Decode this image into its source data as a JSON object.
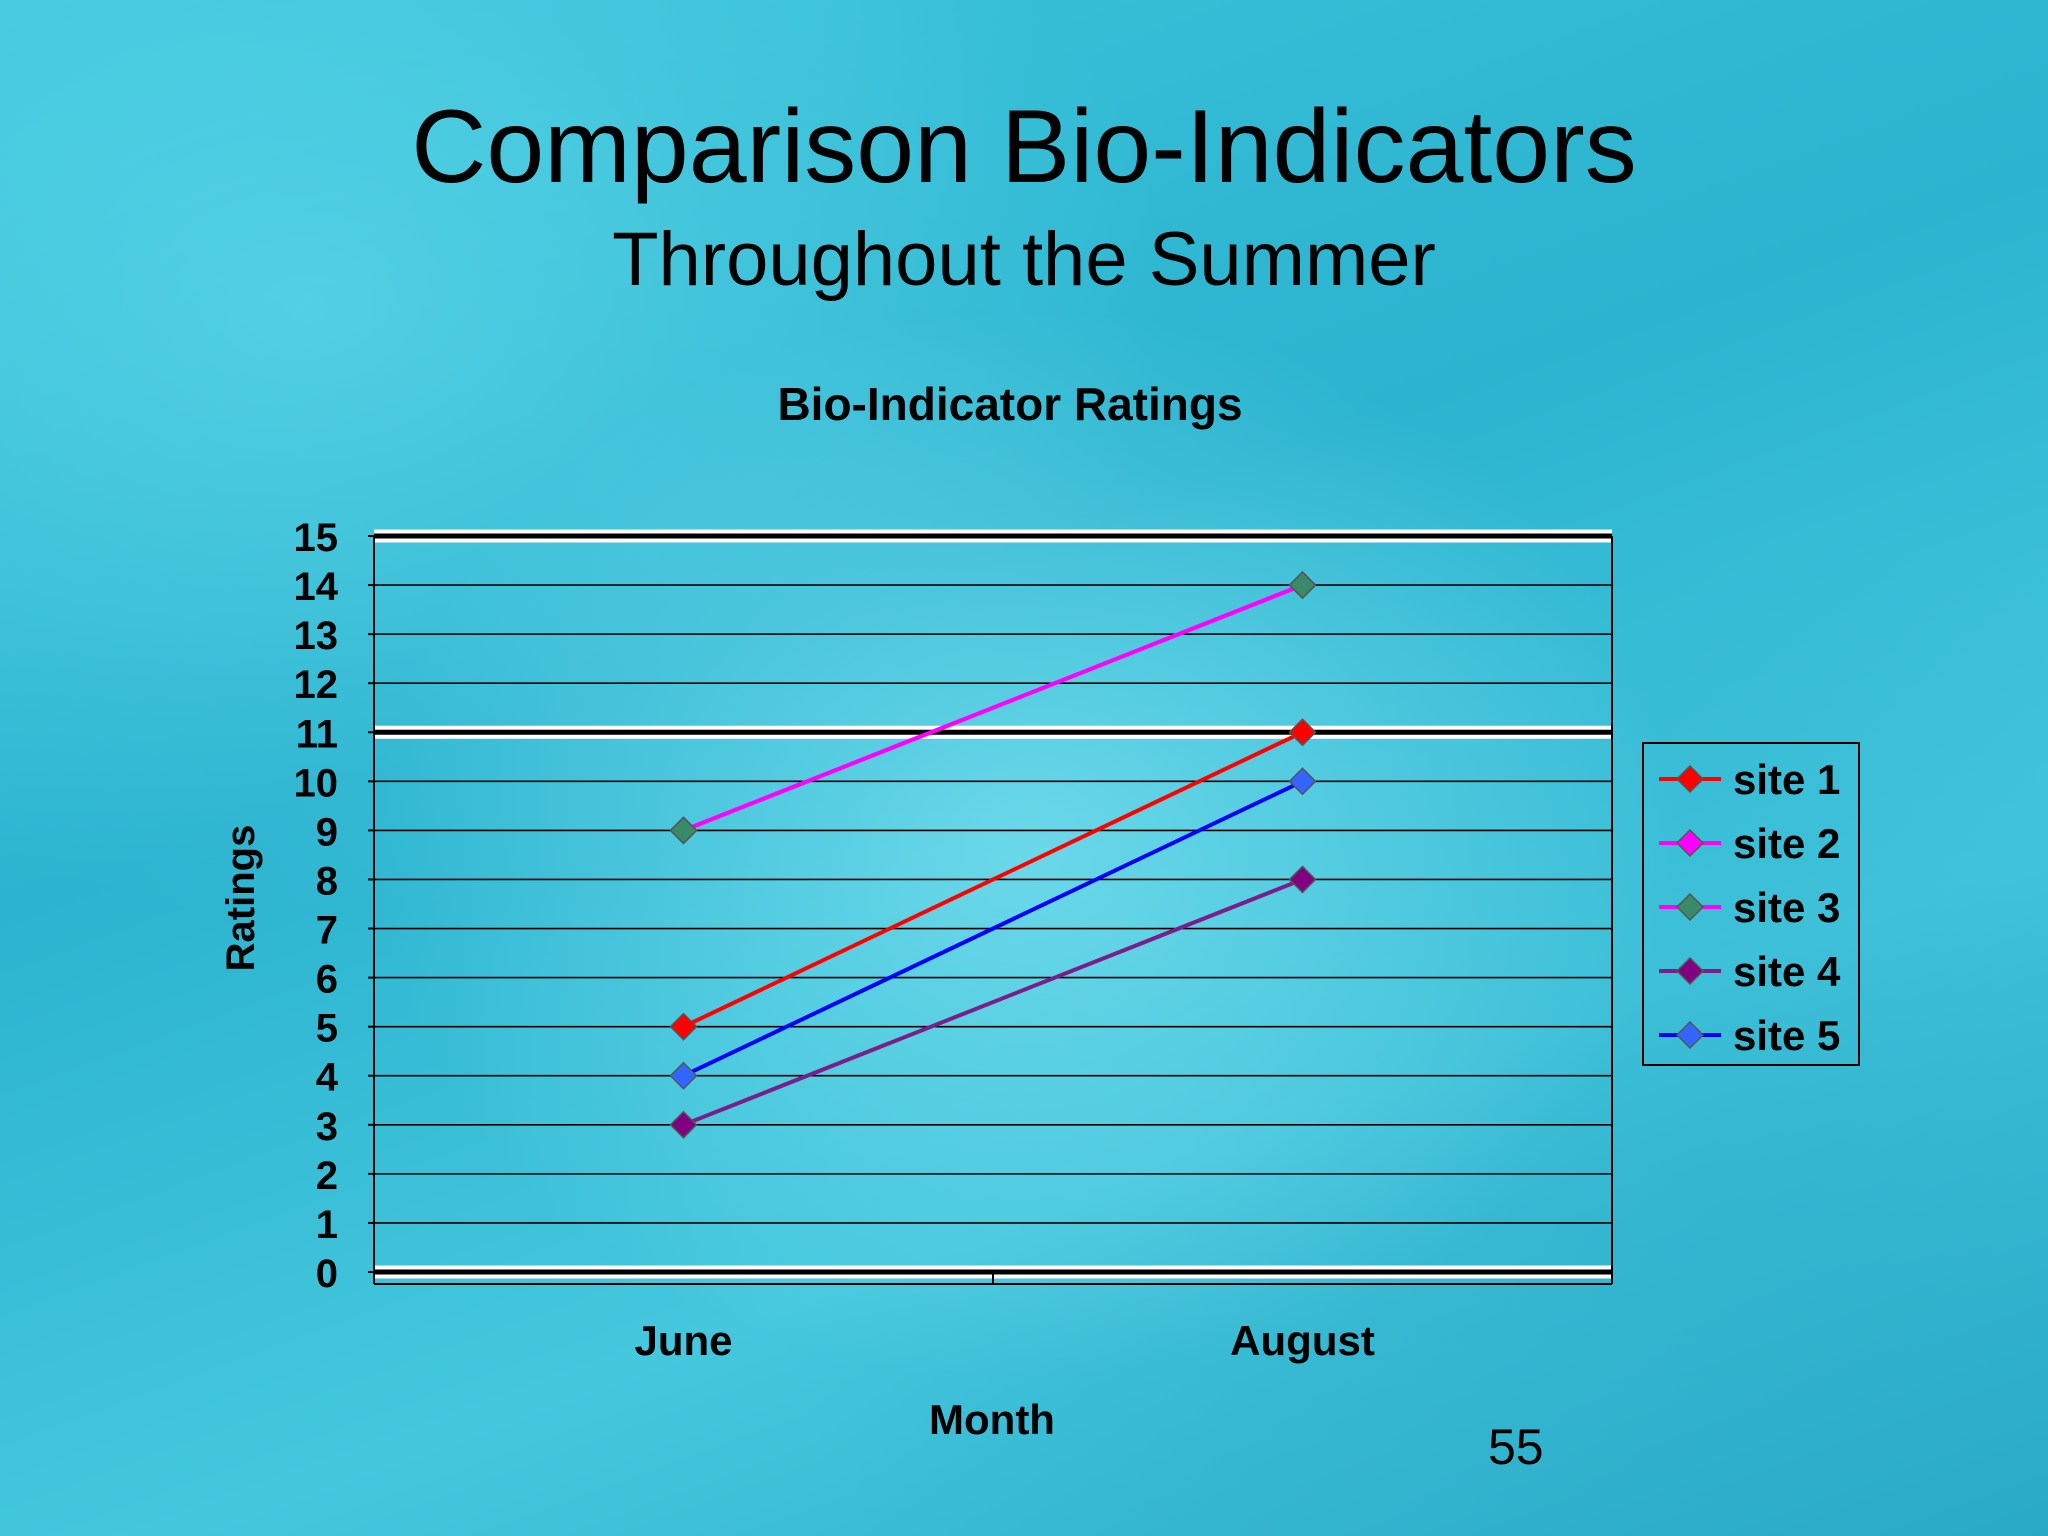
{
  "slide": {
    "title": "Comparison Bio-Indicators",
    "subtitle": "Throughout the Summer",
    "page_number": "55"
  },
  "chart_data": {
    "type": "line",
    "title": "Bio-Indicator Ratings",
    "xlabel": "Month",
    "ylabel": "Ratings",
    "categories": [
      "June",
      "August"
    ],
    "ylim": [
      0,
      15
    ],
    "yticks": [
      "0",
      "1",
      "2",
      "3",
      "4",
      "5",
      "6",
      "7",
      "8",
      "9",
      "10",
      "11",
      "12",
      "13",
      "14",
      "15"
    ],
    "grid": true,
    "legend_position": "right",
    "series": [
      {
        "name": "site 1",
        "values": [
          5,
          11
        ],
        "line_color": "#ff0000",
        "marker_color": "#ff0000"
      },
      {
        "name": "site 2",
        "values": [
          9,
          14
        ],
        "line_color": "#ff00ff",
        "marker_color": "#ff00ff"
      },
      {
        "name": "site 3",
        "values": [
          9,
          14
        ],
        "line_color": "#ff00ff",
        "marker_color": "#3a8a6a"
      },
      {
        "name": "site 4",
        "values": [
          3,
          8
        ],
        "line_color": "#7a1e8a",
        "marker_color": "#800080"
      },
      {
        "name": "site 5",
        "values": [
          4,
          10
        ],
        "line_color": "#0000ff",
        "marker_color": "#3366ff"
      }
    ]
  }
}
